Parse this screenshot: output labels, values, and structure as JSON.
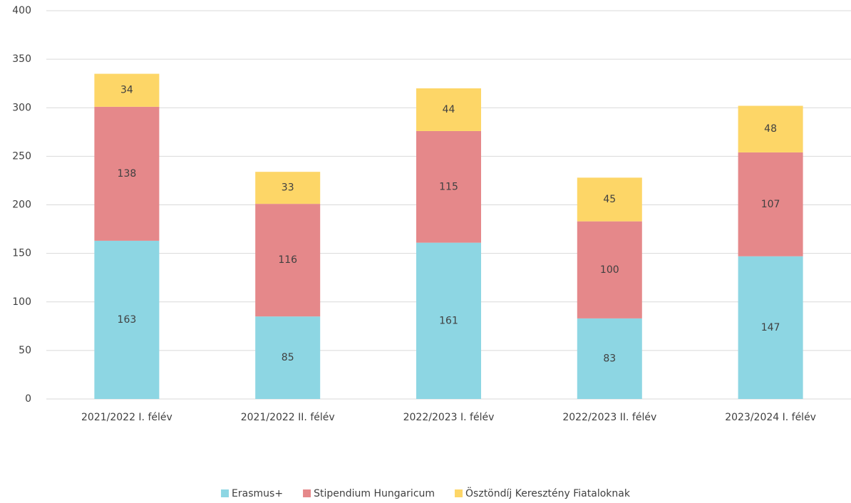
{
  "chart_data": {
    "type": "stacked_bar",
    "categories": [
      "2021/2022 I. félév",
      "2021/2022 II. félév",
      "2022/2023 I. félév",
      "2022/2023 II. félév",
      "2023/2024 I. félév"
    ],
    "series": [
      {
        "name": "Erasmus+",
        "color": "#8dd6e3",
        "values": [
          163,
          85,
          161,
          83,
          147
        ]
      },
      {
        "name": "Stipendium Hungaricum",
        "color": "#e5888a",
        "values": [
          138,
          116,
          115,
          100,
          107
        ]
      },
      {
        "name": "Ösztöndíj Keresztény Fiataloknak",
        "color": "#fdd667",
        "values": [
          34,
          33,
          44,
          45,
          48
        ]
      }
    ],
    "ylim": [
      0,
      400
    ],
    "yticks": [
      0,
      50,
      100,
      150,
      200,
      250,
      300,
      350,
      400
    ],
    "grid": true,
    "legend": "bottom"
  }
}
